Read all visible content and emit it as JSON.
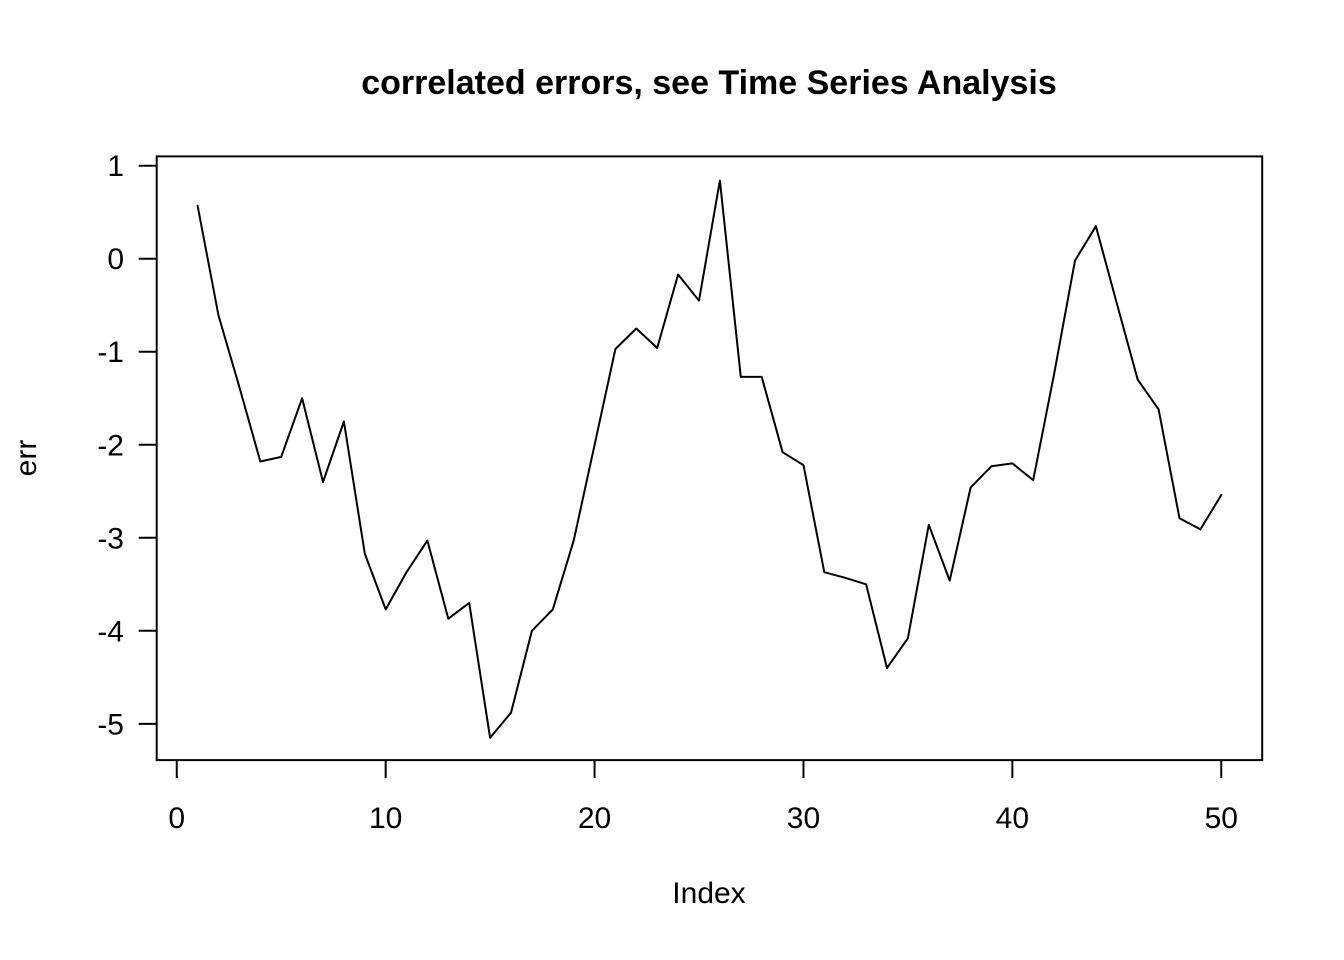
{
  "chart_data": {
    "type": "line",
    "title": "correlated errors, see Time Series Analysis",
    "xlabel": "Index",
    "ylabel": "err",
    "x": [
      1,
      2,
      3,
      4,
      5,
      6,
      7,
      8,
      9,
      10,
      11,
      12,
      13,
      14,
      15,
      16,
      17,
      18,
      19,
      20,
      21,
      22,
      23,
      24,
      25,
      26,
      27,
      28,
      29,
      30,
      31,
      32,
      33,
      34,
      35,
      36,
      37,
      38,
      39,
      40,
      41,
      42,
      43,
      44,
      45,
      46,
      47,
      48,
      49,
      50
    ],
    "series": [
      {
        "name": "err",
        "values": [
          0.57,
          -0.61,
          -1.38,
          -2.18,
          -2.13,
          -1.5,
          -2.4,
          -1.75,
          -3.17,
          -3.77,
          -3.37,
          -3.03,
          -3.87,
          -3.7,
          -5.15,
          -4.88,
          -4.0,
          -3.77,
          -3.03,
          -2.0,
          -0.97,
          -0.75,
          -0.96,
          -0.17,
          -0.45,
          0.84,
          -1.27,
          -1.27,
          -2.08,
          -2.22,
          -3.37,
          -3.43,
          -3.5,
          -4.4,
          -4.08,
          -2.86,
          -3.46,
          -2.46,
          -2.23,
          -2.2,
          -2.38,
          -1.24,
          -0.02,
          0.35,
          -0.48,
          -1.3,
          -1.62,
          -2.79,
          -2.91,
          -2.54
        ]
      }
    ],
    "xticks": [
      0,
      10,
      20,
      30,
      40,
      50
    ],
    "yticks": [
      1,
      0,
      -1,
      -2,
      -3,
      -4,
      -5
    ],
    "xlim": [
      -0.96,
      51.96
    ],
    "ylim": [
      -5.39,
      1.1
    ],
    "grid": false,
    "legend": null,
    "line_color": "#000000",
    "background_color": "#ffffff"
  }
}
